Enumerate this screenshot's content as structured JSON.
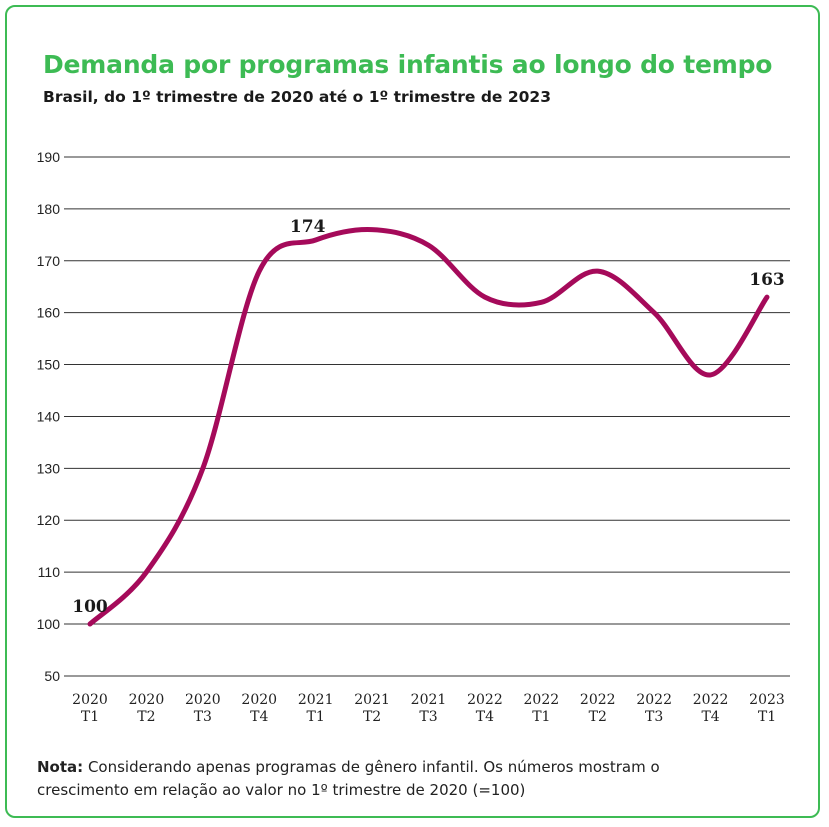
{
  "chart_data": {
    "type": "line",
    "title": "Demanda por programas infantis ao longo do tempo",
    "subtitle": "Brasil, do 1º trimestre de 2020 até o 1º trimestre de 2023",
    "categories": [
      [
        "2020",
        "T1"
      ],
      [
        "2020",
        "T2"
      ],
      [
        "2020",
        "T3"
      ],
      [
        "2020",
        "T4"
      ],
      [
        "2021",
        "T1"
      ],
      [
        "2021",
        "T2"
      ],
      [
        "2021",
        "T3"
      ],
      [
        "2022",
        "T4"
      ],
      [
        "2022",
        "T1"
      ],
      [
        "2022",
        "T2"
      ],
      [
        "2022",
        "T3"
      ],
      [
        "2022",
        "T4"
      ],
      [
        "2023",
        "T1"
      ]
    ],
    "values": [
      100,
      110,
      130,
      168,
      174,
      176,
      173,
      163,
      162,
      168,
      160,
      148,
      163
    ],
    "ylim": [
      50,
      190
    ],
    "yticks": [
      50,
      100,
      110,
      120,
      130,
      140,
      150,
      160,
      170,
      180,
      190
    ],
    "data_labels": [
      {
        "index": 0,
        "text": "100"
      },
      {
        "index": 4,
        "text": "174"
      },
      {
        "index": 12,
        "text": "163"
      }
    ],
    "line_color": "#a50a5a",
    "grid": true
  },
  "note": {
    "label": "Nota:",
    "text": "Considerando apenas programas de gênero infantil. Os números mostram o crescimento em relação ao valor no 1º trimestre de 2020 (=100)"
  },
  "colors": {
    "accent": "#3dbb54",
    "line": "#a50a5a"
  }
}
